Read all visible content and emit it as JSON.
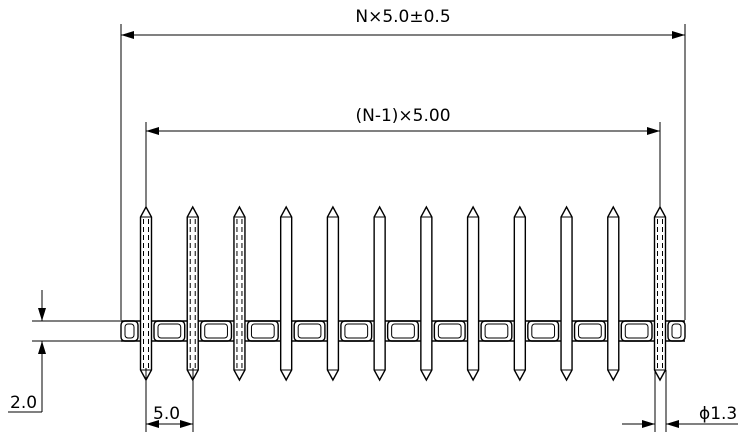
{
  "drawing": {
    "pin_count_shown": 12,
    "dashed_pins": [
      0,
      1,
      2,
      11
    ],
    "dims": {
      "overall": "N×5.0±0.5",
      "pitch_span": "(N-1)×5.00",
      "body_height": "2.0",
      "pitch": "5.0",
      "pin_diameter": "ϕ1.3"
    }
  }
}
